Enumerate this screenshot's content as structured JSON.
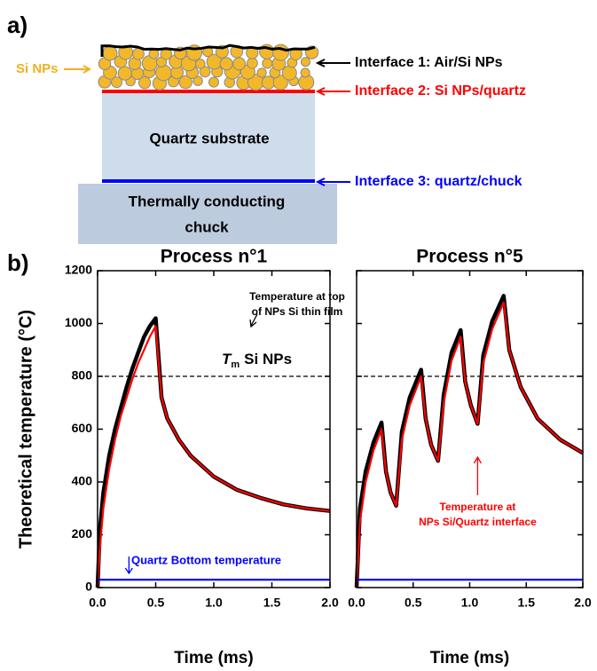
{
  "panel_a": {
    "label": "a)",
    "np_label": "Si NPs",
    "quartz_label": "Quartz substrate",
    "chuck_label": [
      "Thermally conducting",
      "chuck"
    ],
    "interfaces": [
      {
        "text": "Interface 1: Air/Si NPs",
        "color": "#000000"
      },
      {
        "text": "Interface 2: Si NPs/quartz",
        "color": "#ff0000"
      },
      {
        "text": "Interface 3: quartz/chuck",
        "color": "#0000ff"
      }
    ]
  },
  "panel_b": {
    "label": "b)"
  },
  "chart_data": [
    {
      "type": "line",
      "title": "Process n°1",
      "xlabel": "Time (ms)",
      "ylabel": "Theoretical temperature (°C)",
      "xlim": [
        0,
        2
      ],
      "ylim": [
        0,
        1200
      ],
      "xticks": [
        {
          "value": 0,
          "label": "0.0"
        },
        0.5,
        {
          "value": 1,
          "label": "1.0"
        },
        1.5,
        {
          "value": 2,
          "label": "2.0"
        }
      ],
      "yticks": [
        0,
        200,
        400,
        600,
        800,
        1000,
        1200
      ],
      "show_ytick_labels": true,
      "hline": 800,
      "hline_label": {
        "italic": "T",
        "sub": "m",
        "rest": "Si NPs"
      },
      "series": [
        {
          "color": "#000000",
          "x": [
            0,
            0.02,
            0.05,
            0.1,
            0.15,
            0.2,
            0.25,
            0.3,
            0.35,
            0.4,
            0.45,
            0.5,
            0.55,
            0.6,
            0.7,
            0.8,
            1.0,
            1.2,
            1.4,
            1.6,
            1.8,
            2.0
          ],
          "values": [
            0,
            220,
            360,
            500,
            600,
            680,
            760,
            830,
            890,
            950,
            990,
            1020,
            720,
            640,
            560,
            500,
            420,
            370,
            340,
            315,
            300,
            290
          ]
        },
        {
          "color": "#ff0000",
          "x": [
            0,
            0.02,
            0.05,
            0.1,
            0.15,
            0.2,
            0.25,
            0.3,
            0.35,
            0.4,
            0.45,
            0.5,
            0.55,
            0.6,
            0.7,
            0.8,
            1.0,
            1.2,
            1.4,
            1.6,
            1.8,
            2.0
          ],
          "values": [
            0,
            150,
            300,
            450,
            560,
            650,
            720,
            790,
            850,
            900,
            950,
            990,
            720,
            640,
            560,
            500,
            420,
            370,
            340,
            315,
            300,
            290
          ]
        },
        {
          "color": "#0000ff",
          "x": [
            0,
            2
          ],
          "values": [
            30,
            30
          ]
        }
      ],
      "annotations": [
        {
          "lines": [
            "Temperature at top",
            "of NPs Si thin film"
          ],
          "color": "#000000"
        },
        {
          "lines": [
            "Quartz Bottom temperature"
          ],
          "color": "#0000ff"
        }
      ]
    },
    {
      "type": "line",
      "title": "Process n°5",
      "xlabel": "Time (ms)",
      "xlim": [
        0,
        2
      ],
      "ylim": [
        0,
        1200
      ],
      "xticks": [
        {
          "value": 0,
          "label": "0.0"
        },
        0.5,
        {
          "value": 1,
          "label": "1.0"
        },
        1.5,
        {
          "value": 2,
          "label": "2.0"
        }
      ],
      "yticks": [
        0,
        200,
        400,
        600,
        800,
        1000,
        1200
      ],
      "show_ytick_labels": false,
      "hline": 800,
      "series": [
        {
          "color": "#000000",
          "x": [
            0,
            0.03,
            0.08,
            0.15,
            0.22,
            0.26,
            0.3,
            0.35,
            0.4,
            0.47,
            0.57,
            0.61,
            0.66,
            0.72,
            0.77,
            0.84,
            0.92,
            0.96,
            1.01,
            1.07,
            1.12,
            1.2,
            1.3,
            1.35,
            1.45,
            1.6,
            1.8,
            2.0
          ],
          "values": [
            0,
            300,
            440,
            550,
            625,
            440,
            360,
            310,
            590,
            720,
            825,
            640,
            540,
            480,
            730,
            890,
            975,
            780,
            690,
            620,
            880,
            1010,
            1105,
            900,
            760,
            640,
            560,
            510
          ]
        },
        {
          "color": "#ff0000",
          "x": [
            0,
            0.03,
            0.08,
            0.15,
            0.22,
            0.26,
            0.3,
            0.35,
            0.4,
            0.47,
            0.57,
            0.61,
            0.66,
            0.72,
            0.77,
            0.84,
            0.92,
            0.96,
            1.01,
            1.07,
            1.12,
            1.2,
            1.3,
            1.35,
            1.45,
            1.6,
            1.8,
            2.0
          ],
          "values": [
            0,
            250,
            400,
            520,
            600,
            440,
            360,
            310,
            560,
            690,
            800,
            640,
            540,
            480,
            700,
            860,
            950,
            780,
            690,
            620,
            850,
            980,
            1080,
            900,
            760,
            640,
            560,
            510
          ]
        },
        {
          "color": "#0000ff",
          "x": [
            0,
            2
          ],
          "values": [
            30,
            30
          ]
        }
      ],
      "annotations": [
        {
          "lines": [
            "Temperature at",
            "NPs Si/Quartz interface"
          ],
          "color": "#ff0000"
        }
      ]
    }
  ]
}
